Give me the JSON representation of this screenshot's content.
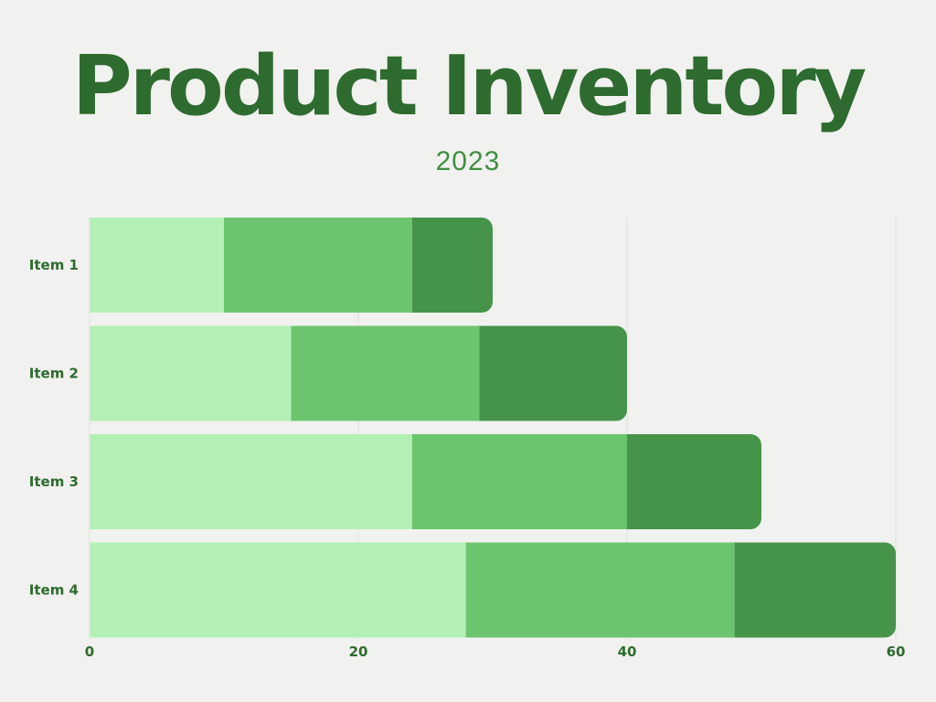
{
  "header": {
    "title": "Product Inventory",
    "subtitle": "2023"
  },
  "colors": {
    "background": "#f1f1ef",
    "title": "#2e6b2f",
    "subtitle": "#3f8f42",
    "text": "#2e6b2f",
    "grid": "#dedede",
    "series": [
      "#b3f0b6",
      "#6bc56f",
      "#46944a"
    ]
  },
  "chart_data": {
    "type": "bar",
    "orientation": "horizontal",
    "stacked": true,
    "title": "Product Inventory",
    "subtitle": "2023",
    "categories": [
      "Item 1",
      "Item 2",
      "Item 3",
      "Item 4"
    ],
    "series": [
      {
        "values": [
          10,
          15,
          24,
          28
        ]
      },
      {
        "values": [
          14,
          14,
          16,
          20
        ]
      },
      {
        "values": [
          6,
          11,
          10,
          12
        ]
      }
    ],
    "xlim": [
      0,
      60
    ],
    "xticks": [
      0,
      20,
      40,
      60
    ],
    "xlabel": "",
    "ylabel": "",
    "grid": true,
    "legend": false
  }
}
